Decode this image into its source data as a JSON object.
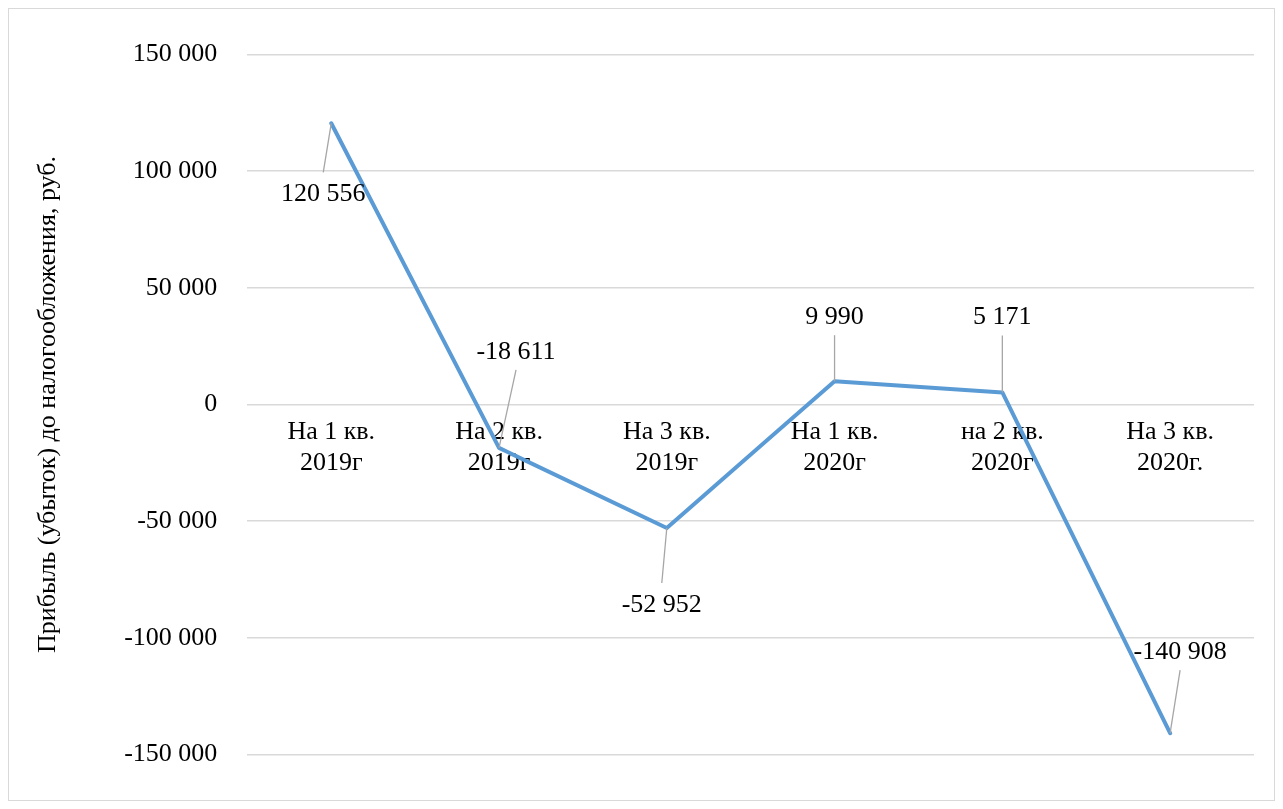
{
  "chart_data": {
    "type": "line",
    "ylabel": "Прибыль (убыток) до налогообложения, руб.",
    "categories": [
      "На 1 кв. 2019г",
      "На 2 кв. 2019г",
      "На 3 кв. 2019г",
      "На 1 кв. 2020г",
      "на 2 кв. 2020г",
      "На 3 кв. 2020г."
    ],
    "series": [
      {
        "color": "#5b9bd5",
        "values": [
          120556,
          -18611,
          -52952,
          9990,
          5171,
          -140908
        ]
      }
    ],
    "ylim": [
      -150000,
      150000
    ],
    "yticks": [
      -150000,
      -100000,
      -50000,
      0,
      50000,
      100000,
      150000
    ],
    "grid": "y",
    "legend": false,
    "marker": "none",
    "line_style": "solid",
    "data_labels": true
  }
}
